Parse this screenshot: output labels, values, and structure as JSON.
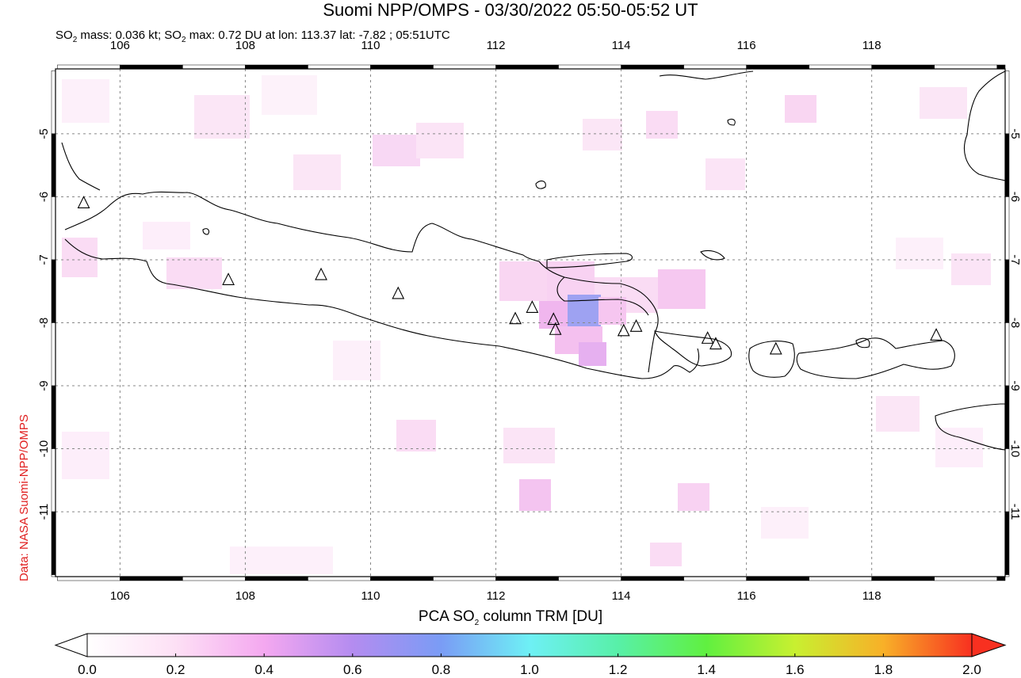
{
  "header": {
    "title": "Suomi NPP/OMPS - 03/30/2022 05:50-05:52 UT",
    "subtitle_pre": "SO",
    "subtitle_sub": "2",
    "subtitle_mid": " mass: 0.036 kt; SO",
    "subtitle_sub2": "2",
    "subtitle_post": " max: 0.72 DU at lon: 113.37 lat: -7.82 ; 05:51UTC"
  },
  "credit": "Data: NASA Suomi-NPP/OMPS",
  "map": {
    "lon_ticks": [
      "106",
      "108",
      "110",
      "112",
      "114",
      "116",
      "118"
    ],
    "lat_ticks": [
      "-5",
      "-6",
      "-7",
      "-8",
      "-9",
      "-10",
      "-11"
    ],
    "lon_range": [
      104.97,
      120.13
    ],
    "lat_range": [
      -12.03,
      -3.97
    ],
    "grid": true,
    "volcano_marker": "triangle-icon",
    "volcanoes": [
      {
        "lon": 105.42,
        "lat": -6.1
      },
      {
        "lon": 107.73,
        "lat": -7.32
      },
      {
        "lon": 109.21,
        "lat": -7.24
      },
      {
        "lon": 110.44,
        "lat": -7.54
      },
      {
        "lon": 112.31,
        "lat": -7.94
      },
      {
        "lon": 112.58,
        "lat": -7.76
      },
      {
        "lon": 112.92,
        "lat": -7.95
      },
      {
        "lon": 112.95,
        "lat": -8.11
      },
      {
        "lon": 114.04,
        "lat": -8.13
      },
      {
        "lon": 114.24,
        "lat": -8.06
      },
      {
        "lon": 115.38,
        "lat": -8.25
      },
      {
        "lon": 115.51,
        "lat": -8.34
      },
      {
        "lon": 116.47,
        "lat": -8.42
      },
      {
        "lon": 119.03,
        "lat": -8.2
      }
    ]
  },
  "colorbar": {
    "label_pre": "PCA SO",
    "label_sub": "2",
    "label_post": " column TRM [DU]",
    "ticks": [
      "0.0",
      "0.2",
      "0.4",
      "0.6",
      "0.8",
      "1.0",
      "1.2",
      "1.4",
      "1.6",
      "1.8",
      "2.0"
    ],
    "colors": [
      "#ffffff",
      "#fde0f5",
      "#f4a8f0",
      "#b48cf0",
      "#7a9cf5",
      "#6ef0f5",
      "#58f0a8",
      "#60f040",
      "#c8f030",
      "#f8b028",
      "#f83020"
    ]
  },
  "so2_max": {
    "value": 0.72,
    "lon": 113.37,
    "lat": -7.82
  }
}
